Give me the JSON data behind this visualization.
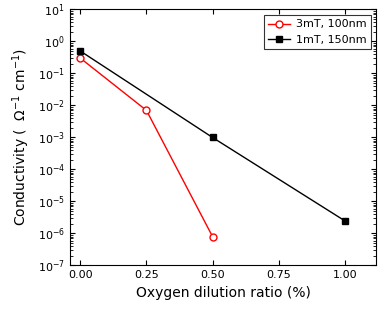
{
  "series": [
    {
      "label": "3mT, 100nm",
      "x": [
        0.0,
        0.25,
        0.5
      ],
      "y": [
        0.3,
        0.007,
        8e-07
      ],
      "color": "#ff0000",
      "marker": "o",
      "markerfacecolor": "white",
      "linewidth": 1.0,
      "markersize": 5
    },
    {
      "label": "1mT, 150nm",
      "x": [
        0.0,
        0.5,
        1.0
      ],
      "y": [
        0.5,
        0.001,
        2.5e-06
      ],
      "color": "#000000",
      "marker": "s",
      "markerfacecolor": "#000000",
      "linewidth": 1.0,
      "markersize": 5
    }
  ],
  "xlabel": "Oxygen dilution ratio (%)",
  "ylim_log": [
    -7,
    1
  ],
  "xlim": [
    -0.04,
    1.12
  ],
  "xticks": [
    0.0,
    0.25,
    0.5,
    0.75,
    1.0
  ],
  "legend_loc": "upper right",
  "background_color": "#ffffff",
  "label_fontsize": 10,
  "tick_fontsize": 8,
  "legend_fontsize": 8
}
